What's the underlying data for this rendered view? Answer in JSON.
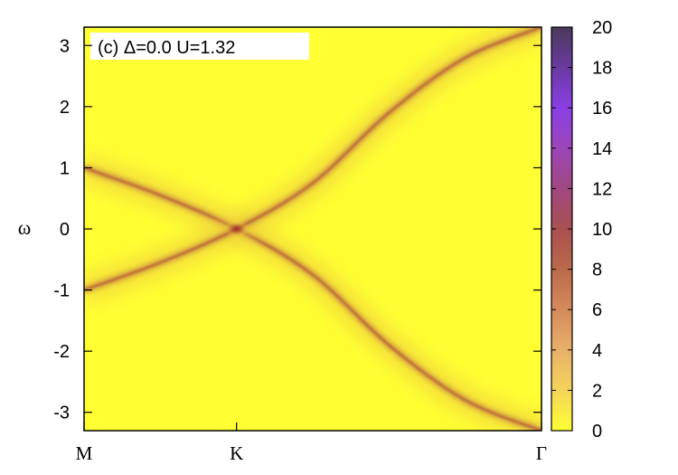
{
  "chart_data": {
    "type": "heatmap",
    "title": "(c)  Δ=0.0  U=1.32",
    "xlabel": "",
    "ylabel": "ω",
    "x_ticks": [
      "M",
      "K",
      "Γ"
    ],
    "x_tick_values": [
      0,
      1,
      3
    ],
    "xlim": [
      0,
      3
    ],
    "ylim": [
      -3.3,
      3.3
    ],
    "y_ticks": [
      3,
      2,
      1,
      0,
      -1,
      -2,
      -3
    ],
    "colorbar": {
      "range": [
        0,
        20
      ],
      "ticks": [
        0,
        2,
        4,
        6,
        8,
        10,
        12,
        14,
        16,
        18,
        20
      ],
      "colors": [
        "#ffff33",
        "#f5d45a",
        "#e8b06a",
        "#d58a5c",
        "#bb6a4a",
        "#a85050",
        "#a04880",
        "#9c46b8",
        "#8a3fe6",
        "#6a3aa0",
        "#4a3a5c"
      ]
    },
    "bands": [
      {
        "name": "",
        "points": [
          [
            0,
            1.0
          ],
          [
            0.5,
            0.55
          ],
          [
            1,
            0.0
          ],
          [
            1.5,
            -0.75
          ],
          [
            2,
            -1.9
          ],
          [
            2.5,
            -2.8
          ],
          [
            3,
            -3.3
          ]
        ],
        "peak": 4
      },
      {
        "name": "",
        "points": [
          [
            0,
            -1.0
          ],
          [
            0.5,
            -0.55
          ],
          [
            1,
            0.0
          ],
          [
            1.5,
            0.75
          ],
          [
            2,
            1.9
          ],
          [
            2.5,
            2.8
          ],
          [
            3,
            3.3
          ]
        ],
        "peak": 4
      }
    ],
    "dirac_point": {
      "x": 1,
      "y": 0,
      "value": 10
    }
  }
}
